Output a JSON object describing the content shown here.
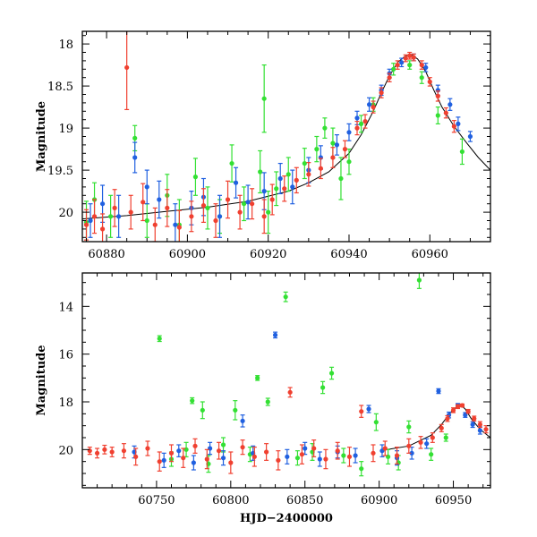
{
  "chart_data": [
    {
      "type": "scatter",
      "panel": "top",
      "xlabel": "",
      "ylabel": "Magnitude",
      "xlim": [
        60874,
        60975
      ],
      "ylim": [
        20.35,
        17.85
      ],
      "y_inverted": true,
      "x_ticks": [
        60880,
        60900,
        60920,
        60940,
        60960
      ],
      "y_ticks": [
        18,
        18.5,
        19,
        19.5,
        20
      ],
      "x_tick_labels": [
        "60880",
        "60900",
        "60920",
        "60940",
        "60960"
      ],
      "y_tick_labels": [
        "18",
        "18.5",
        "19",
        "19.5",
        "20"
      ],
      "model_curve": {
        "name": "model",
        "color": "#000000",
        "x": [
          60874,
          60885,
          60895,
          60905,
          60915,
          60925,
          60930,
          60935,
          60940,
          60943,
          60946,
          60948,
          60950,
          60952,
          60954,
          60955.5,
          60957,
          60959,
          60961,
          60963,
          60966,
          60969,
          60972,
          60975
        ],
        "y": [
          20.08,
          20.04,
          19.99,
          19.94,
          19.87,
          19.75,
          19.65,
          19.52,
          19.3,
          19.08,
          18.8,
          18.58,
          18.38,
          18.22,
          18.14,
          18.13,
          18.18,
          18.33,
          18.55,
          18.75,
          18.98,
          19.17,
          19.35,
          19.5
        ]
      },
      "series": [
        {
          "name": "green",
          "color": "#33e033",
          "x": [
            60875,
            60877,
            60881,
            60887,
            60890,
            60895,
            60898,
            60902,
            60905,
            60908,
            60911,
            60914,
            60918,
            60919,
            60920,
            60922,
            60925,
            60929,
            60932,
            60934,
            60936,
            60938,
            60940,
            60943,
            60946,
            60951,
            60955,
            60958,
            60962,
            60968
          ],
          "y": [
            20.12,
            19.85,
            20.05,
            19.12,
            20.1,
            19.8,
            20.15,
            19.58,
            19.95,
            20.05,
            19.42,
            19.9,
            19.52,
            18.65,
            20.0,
            19.72,
            19.55,
            19.42,
            19.25,
            19.0,
            19.18,
            19.6,
            19.4,
            18.95,
            18.72,
            18.3,
            18.25,
            18.4,
            18.85,
            19.28
          ],
          "err": [
            0.25,
            0.2,
            0.25,
            0.15,
            0.2,
            0.25,
            0.3,
            0.22,
            0.25,
            0.2,
            0.22,
            0.2,
            0.25,
            0.4,
            0.25,
            0.2,
            0.2,
            0.18,
            0.15,
            0.12,
            0.18,
            0.25,
            0.15,
            0.1,
            0.08,
            0.07,
            0.05,
            0.07,
            0.1,
            0.15
          ]
        },
        {
          "name": "blue",
          "color": "#2060e0",
          "x": [
            60876,
            60879,
            60883,
            60887,
            60890,
            60893,
            60897,
            60901,
            60904,
            60908,
            60912,
            60915,
            60919,
            60923,
            60926,
            60930,
            60933,
            60937,
            60940,
            60942,
            60945,
            60948,
            60950,
            60953,
            60956,
            60959,
            60962,
            60965,
            60967,
            60970
          ],
          "y": [
            20.1,
            19.9,
            20.05,
            19.35,
            19.7,
            19.85,
            20.15,
            19.95,
            19.82,
            20.05,
            19.65,
            19.88,
            19.75,
            19.6,
            19.7,
            19.5,
            19.35,
            19.2,
            19.05,
            18.88,
            18.72,
            18.55,
            18.35,
            18.22,
            18.16,
            18.28,
            18.55,
            18.72,
            18.95,
            19.1
          ],
          "err": [
            0.2,
            0.22,
            0.25,
            0.18,
            0.2,
            0.22,
            0.25,
            0.2,
            0.22,
            0.25,
            0.18,
            0.2,
            0.22,
            0.18,
            0.2,
            0.15,
            0.14,
            0.12,
            0.1,
            0.08,
            0.08,
            0.06,
            0.05,
            0.05,
            0.04,
            0.05,
            0.06,
            0.07,
            0.08,
            0.06
          ]
        },
        {
          "name": "red",
          "color": "#f04030",
          "x": [
            60875,
            60877,
            60879,
            60882,
            60885,
            60886,
            60889,
            60892,
            60895,
            60898,
            60901,
            60904,
            60907,
            60910,
            60913,
            60916,
            60919,
            60921,
            60924,
            60927,
            60930,
            60933,
            60936,
            60939,
            60942,
            60944,
            60946,
            60948,
            60950,
            60952,
            60954,
            60955,
            60956,
            60958,
            60960,
            60962,
            60964,
            60966
          ],
          "y": [
            20.15,
            20.05,
            20.2,
            19.95,
            18.28,
            20.0,
            19.88,
            20.15,
            19.95,
            20.18,
            20.05,
            19.92,
            20.1,
            19.85,
            20.0,
            19.9,
            20.05,
            19.85,
            19.72,
            19.62,
            19.55,
            19.48,
            19.35,
            19.25,
            19.0,
            18.92,
            18.75,
            18.58,
            18.4,
            18.25,
            18.17,
            18.14,
            18.16,
            18.25,
            18.45,
            18.62,
            18.82,
            18.98
          ],
          "err": [
            0.18,
            0.2,
            0.18,
            0.22,
            0.5,
            0.2,
            0.22,
            0.2,
            0.22,
            0.2,
            0.18,
            0.2,
            0.2,
            0.22,
            0.2,
            0.18,
            0.2,
            0.18,
            0.15,
            0.15,
            0.14,
            0.12,
            0.12,
            0.1,
            0.08,
            0.08,
            0.07,
            0.06,
            0.05,
            0.05,
            0.04,
            0.04,
            0.04,
            0.05,
            0.05,
            0.06,
            0.06,
            0.07
          ]
        }
      ]
    },
    {
      "type": "scatter",
      "panel": "bottom",
      "xlabel": "HJD−2400000",
      "ylabel": "Magnitude",
      "xlim": [
        60700,
        60975
      ],
      "ylim": [
        21.6,
        12.6
      ],
      "y_inverted": true,
      "x_ticks": [
        60750,
        60800,
        60850,
        60900,
        60950
      ],
      "y_ticks": [
        14,
        16,
        18,
        20
      ],
      "x_tick_labels": [
        "60750",
        "60800",
        "60850",
        "60900",
        "60950"
      ],
      "y_tick_labels": [
        "14",
        "16",
        "18",
        "20"
      ],
      "model_curve": {
        "name": "model",
        "color": "#000000",
        "x": [
          60905,
          60920,
          60935,
          60942,
          60948,
          60952,
          60955,
          60958,
          60962,
          60968,
          60975
        ],
        "y": [
          20.0,
          19.85,
          19.4,
          18.95,
          18.45,
          18.22,
          18.14,
          18.3,
          18.7,
          19.15,
          19.5
        ]
      },
      "series": [
        {
          "name": "green",
          "color": "#33e033",
          "x": [
            60752,
            60760,
            60770,
            60774,
            60781,
            60785,
            60795,
            60803,
            60813,
            60818,
            60825,
            60837,
            60845,
            60855,
            60862,
            60868,
            60876,
            60888,
            60898,
            60906,
            60913,
            60920,
            60927,
            60935,
            60945
          ],
          "y": [
            15.35,
            20.4,
            20.0,
            17.95,
            18.35,
            20.6,
            19.8,
            18.35,
            20.2,
            17.0,
            18.0,
            13.6,
            20.35,
            20.1,
            17.4,
            16.8,
            20.25,
            20.8,
            18.85,
            20.3,
            20.55,
            19.05,
            12.9,
            20.2,
            19.5
          ],
          "err": [
            0.12,
            0.3,
            0.3,
            0.12,
            0.35,
            0.35,
            0.3,
            0.4,
            0.3,
            0.1,
            0.15,
            0.2,
            0.3,
            0.35,
            0.25,
            0.25,
            0.3,
            0.3,
            0.35,
            0.3,
            0.3,
            0.25,
            0.35,
            0.25,
            0.15
          ]
        },
        {
          "name": "blue",
          "color": "#2060e0",
          "x": [
            60735,
            60755,
            60765,
            60775,
            60786,
            60795,
            60808,
            60815,
            60830,
            60838,
            60850,
            60860,
            60872,
            60884,
            60893,
            60902,
            60912,
            60922,
            60932,
            60940,
            60947,
            60953,
            60958,
            60963,
            60968
          ],
          "y": [
            20.1,
            20.45,
            20.05,
            20.55,
            19.95,
            20.35,
            18.8,
            20.15,
            15.2,
            20.3,
            19.95,
            20.4,
            20.1,
            20.25,
            18.3,
            20.05,
            20.35,
            20.15,
            19.75,
            17.55,
            18.55,
            18.15,
            18.55,
            18.95,
            19.2
          ],
          "err": [
            0.25,
            0.3,
            0.25,
            0.3,
            0.25,
            0.3,
            0.25,
            0.3,
            0.12,
            0.3,
            0.25,
            0.3,
            0.25,
            0.3,
            0.15,
            0.25,
            0.3,
            0.25,
            0.2,
            0.1,
            0.12,
            0.08,
            0.1,
            0.12,
            0.15
          ]
        },
        {
          "name": "red",
          "color": "#f04030",
          "x": [
            60705,
            60710,
            60715,
            60720,
            60728,
            60736,
            60744,
            60752,
            60760,
            60768,
            60776,
            60784,
            60792,
            60800,
            60808,
            60816,
            60824,
            60832,
            60840,
            60848,
            60856,
            60864,
            60872,
            60880,
            60888,
            60896,
            60904,
            60912,
            60920,
            60928,
            60936,
            60942,
            60946,
            60950,
            60953,
            60956,
            60960,
            60964,
            60968,
            60972
          ],
          "y": [
            20.05,
            20.15,
            20.0,
            20.1,
            20.05,
            20.3,
            19.95,
            20.5,
            20.15,
            20.35,
            19.85,
            20.4,
            20.05,
            20.55,
            19.9,
            20.3,
            20.1,
            20.45,
            17.6,
            20.2,
            19.95,
            20.4,
            20.05,
            20.3,
            18.4,
            20.15,
            19.95,
            20.25,
            19.85,
            19.7,
            19.5,
            19.1,
            18.7,
            18.35,
            18.2,
            18.15,
            18.4,
            18.7,
            18.95,
            19.15
          ],
          "err": [
            0.15,
            0.2,
            0.18,
            0.2,
            0.3,
            0.35,
            0.3,
            0.4,
            0.35,
            0.4,
            0.3,
            0.4,
            0.35,
            0.45,
            0.3,
            0.4,
            0.35,
            0.4,
            0.2,
            0.4,
            0.35,
            0.4,
            0.35,
            0.4,
            0.25,
            0.35,
            0.3,
            0.35,
            0.3,
            0.25,
            0.2,
            0.15,
            0.12,
            0.1,
            0.08,
            0.06,
            0.08,
            0.1,
            0.12,
            0.15
          ]
        }
      ]
    }
  ]
}
